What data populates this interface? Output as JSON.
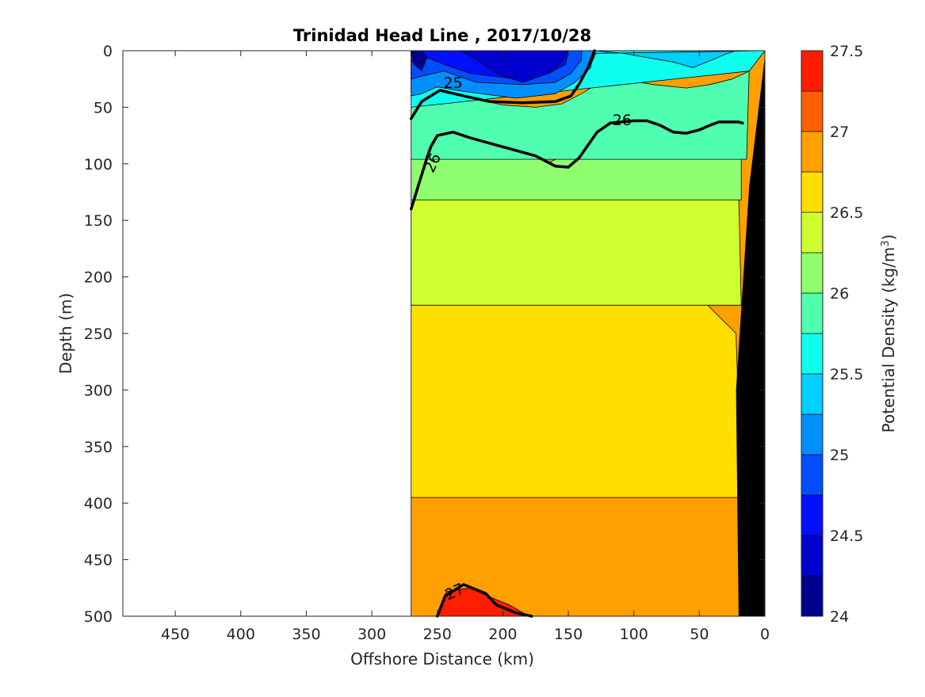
{
  "chart_data": {
    "type": "contour",
    "title": "Trinidad Head Line , 2017/10/28",
    "xlabel": "Offshore Distance (km)",
    "ylabel": "Depth (m)",
    "xlim": [
      490,
      0
    ],
    "ylim": [
      0,
      500
    ],
    "x_reversed": true,
    "y_reversed": true,
    "x_ticks": [
      450,
      400,
      350,
      300,
      250,
      200,
      150,
      100,
      50,
      0
    ],
    "y_ticks": [
      0,
      50,
      100,
      150,
      200,
      250,
      300,
      350,
      400,
      450,
      500
    ],
    "colorbar": {
      "label": "Potential Density (kg/m",
      "label_superscript": "3",
      "label_suffix": ")",
      "range": [
        24,
        27.5
      ],
      "ticks": [
        "24",
        "24.5",
        "25",
        "25.5",
        "26",
        "26.5",
        "27",
        "27.5"
      ],
      "levels": [
        24,
        24.25,
        24.5,
        24.75,
        25,
        25.25,
        25.5,
        25.75,
        26,
        26.25,
        26.5,
        26.75,
        27,
        27.25,
        27.5
      ],
      "colors": [
        "#00008f",
        "#0000cf",
        "#000fff",
        "#004fff",
        "#008fff",
        "#00cfff",
        "#0fffef",
        "#4fffaf",
        "#8fff6f",
        "#cfff2f",
        "#ffdf00",
        "#ff9f00",
        "#ff5f00",
        "#ff1f00",
        "#cf0000"
      ]
    },
    "data_extent_x": [
      270,
      0
    ],
    "regions": [
      {
        "level": 26.75,
        "polygon": [
          [
            270,
            500
          ],
          [
            270,
            395
          ],
          [
            264,
            350
          ],
          [
            252,
            305
          ],
          [
            247,
            270
          ],
          [
            234,
            272
          ],
          [
            220,
            287
          ],
          [
            205,
            292
          ],
          [
            185,
            300
          ],
          [
            165,
            312
          ],
          [
            150,
            312
          ],
          [
            115,
            308
          ],
          [
            105,
            306
          ],
          [
            78,
            312
          ],
          [
            60,
            330
          ],
          [
            45,
            355
          ],
          [
            34,
            382
          ],
          [
            20,
            395
          ],
          [
            18,
            500
          ]
        ]
      },
      {
        "level": 26.5,
        "polygon": [
          [
            270,
            395
          ],
          [
            270,
            225
          ],
          [
            262,
            208
          ],
          [
            255,
            170
          ],
          [
            245,
            125
          ],
          [
            236,
            132
          ],
          [
            222,
            155
          ],
          [
            205,
            168
          ],
          [
            180,
            176
          ],
          [
            160,
            183
          ],
          [
            130,
            195
          ],
          [
            105,
            193
          ],
          [
            90,
            192
          ],
          [
            75,
            200
          ],
          [
            55,
            212
          ],
          [
            35,
            235
          ],
          [
            22,
            250
          ],
          [
            18,
            395
          ]
        ]
      },
      {
        "level": 26.25,
        "polygon": [
          [
            270,
            225
          ],
          [
            270,
            132
          ],
          [
            262,
            110
          ],
          [
            243,
            97
          ],
          [
            220,
            98
          ],
          [
            205,
            100
          ],
          [
            185,
            105
          ],
          [
            160,
            112
          ],
          [
            135,
            105
          ],
          [
            105,
            96
          ],
          [
            85,
            98
          ],
          [
            65,
            110
          ],
          [
            45,
            120
          ],
          [
            30,
            125
          ],
          [
            20,
            125
          ],
          [
            18,
            225
          ]
        ]
      },
      {
        "level": 26.0,
        "polygon": [
          [
            270,
            132
          ],
          [
            270,
            96
          ],
          [
            262,
            86
          ],
          [
            255,
            78
          ],
          [
            240,
            72
          ],
          [
            225,
            73
          ],
          [
            195,
            82
          ],
          [
            165,
            99
          ],
          [
            140,
            85
          ],
          [
            120,
            65
          ],
          [
            95,
            60
          ],
          [
            70,
            62
          ],
          [
            50,
            63
          ],
          [
            32,
            62
          ],
          [
            18,
            62
          ],
          [
            18,
            132
          ]
        ]
      },
      {
        "level": 25.75,
        "polygon": [
          [
            270,
            96
          ],
          [
            270,
            50
          ],
          [
            258,
            45
          ],
          [
            245,
            40
          ],
          [
            225,
            42
          ],
          [
            200,
            48
          ],
          [
            175,
            50
          ],
          [
            155,
            47
          ],
          [
            140,
            38
          ],
          [
            126,
            28
          ],
          [
            105,
            26
          ],
          [
            85,
            30
          ],
          [
            60,
            33
          ],
          [
            42,
            30
          ],
          [
            25,
            25
          ],
          [
            12,
            18
          ],
          [
            14,
            96
          ]
        ]
      },
      {
        "level": 25.5,
        "polygon": [
          [
            270,
            50
          ],
          [
            270,
            5
          ],
          [
            258,
            10
          ],
          [
            245,
            25
          ],
          [
            215,
            30
          ],
          [
            185,
            35
          ],
          [
            160,
            33
          ],
          [
            145,
            25
          ],
          [
            132,
            10
          ],
          [
            128,
            0
          ],
          [
            0,
            0
          ],
          [
            12,
            18
          ]
        ]
      },
      {
        "level": 25.25,
        "polygon": [
          [
            270,
            5
          ],
          [
            270,
            0
          ],
          [
            130,
            0
          ],
          [
            110,
            2
          ],
          [
            90,
            6
          ],
          [
            70,
            10
          ],
          [
            55,
            15
          ],
          [
            40,
            8
          ],
          [
            30,
            3
          ],
          [
            22,
            0
          ],
          [
            0,
            0
          ]
        ]
      },
      {
        "level": 25.0,
        "polygon": [
          [
            270,
            40
          ],
          [
            262,
            38
          ],
          [
            250,
            32
          ],
          [
            230,
            36
          ],
          [
            190,
            42
          ],
          [
            160,
            38
          ],
          [
            145,
            28
          ],
          [
            133,
            15
          ],
          [
            130,
            0
          ],
          [
            270,
            0
          ]
        ]
      },
      {
        "level": 24.75,
        "polygon": [
          [
            270,
            25
          ],
          [
            260,
            22
          ],
          [
            245,
            18
          ],
          [
            220,
            28
          ],
          [
            185,
            30
          ],
          [
            160,
            28
          ],
          [
            148,
            20
          ],
          [
            140,
            8
          ],
          [
            140,
            0
          ],
          [
            270,
            0
          ]
        ]
      },
      {
        "level": 24.5,
        "polygon": [
          [
            270,
            10
          ],
          [
            258,
            6
          ],
          [
            245,
            12
          ],
          [
            225,
            20
          ],
          [
            190,
            25
          ],
          [
            165,
            20
          ],
          [
            152,
            12
          ],
          [
            150,
            0
          ],
          [
            262,
            0
          ]
        ]
      },
      {
        "level": 24.25,
        "polygon": [
          [
            232,
            0
          ],
          [
            220,
            8
          ],
          [
            205,
            20
          ],
          [
            185,
            28
          ],
          [
            165,
            20
          ],
          [
            155,
            10
          ],
          [
            150,
            0
          ]
        ]
      },
      {
        "level": 24.0,
        "polygon": [
          [
            270,
            0
          ],
          [
            268,
            12
          ],
          [
            262,
            18
          ],
          [
            258,
            6
          ],
          [
            262,
            0
          ]
        ]
      },
      {
        "level": 27.25,
        "polygon": [
          [
            250,
            500
          ],
          [
            243,
            478
          ],
          [
            225,
            475
          ],
          [
            210,
            483
          ],
          [
            195,
            490
          ],
          [
            180,
            500
          ]
        ]
      }
    ],
    "thick_contours": [
      {
        "value": 25,
        "points": [
          [
            270,
            60
          ],
          [
            262,
            45
          ],
          [
            248,
            35
          ],
          [
            230,
            40
          ],
          [
            210,
            45
          ],
          [
            185,
            46
          ],
          [
            160,
            45
          ],
          [
            148,
            40
          ],
          [
            142,
            30
          ],
          [
            135,
            15
          ],
          [
            130,
            0
          ]
        ]
      },
      {
        "value": 26,
        "points": [
          [
            270,
            140
          ],
          [
            266,
            125
          ],
          [
            262,
            110
          ],
          [
            258,
            95
          ],
          [
            255,
            85
          ],
          [
            250,
            75
          ],
          [
            238,
            72
          ],
          [
            225,
            77
          ],
          [
            200,
            85
          ],
          [
            175,
            93
          ],
          [
            160,
            102
          ],
          [
            150,
            103
          ],
          [
            142,
            95
          ],
          [
            128,
            72
          ],
          [
            118,
            64
          ],
          [
            100,
            62
          ],
          [
            90,
            62
          ],
          [
            80,
            66
          ],
          [
            70,
            72
          ],
          [
            60,
            73
          ],
          [
            50,
            70
          ],
          [
            42,
            66
          ],
          [
            35,
            63
          ],
          [
            20,
            63
          ],
          [
            17,
            64
          ]
        ]
      },
      {
        "value": 27,
        "points": [
          [
            250,
            500
          ],
          [
            244,
            482
          ],
          [
            230,
            472
          ],
          [
            213,
            480
          ],
          [
            205,
            490
          ],
          [
            190,
            497
          ],
          [
            178,
            500
          ]
        ]
      }
    ],
    "contour_labels": [
      {
        "text": "25",
        "x": 238,
        "y": 28,
        "angle": 0
      },
      {
        "text": "26",
        "x": 109,
        "y": 61,
        "angle": 0
      },
      {
        "text": "26",
        "x": 254,
        "y": 99,
        "angle": -65
      },
      {
        "text": "27",
        "x": 237,
        "y": 478,
        "angle": -25
      }
    ],
    "bathymetry": {
      "color": "#000000",
      "polygon": [
        [
          20,
          500
        ],
        [
          22,
          300
        ],
        [
          12,
          120
        ],
        [
          0,
          5
        ],
        [
          0,
          500
        ]
      ]
    }
  }
}
